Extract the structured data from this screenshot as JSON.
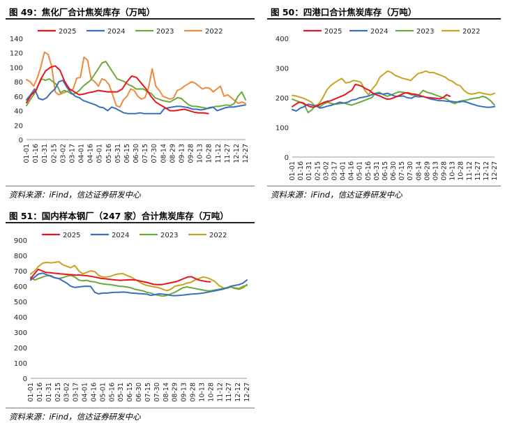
{
  "colors": {
    "c2025": "#e8141c",
    "c2024": "#3a6ec0",
    "c2023": "#6aaa3c",
    "c2022_a": "#ee8a3c",
    "c2022_b": "#c9a21f"
  },
  "panels": {
    "p49": {
      "title": "图 49：焦化厂合计焦炭库存（万吨）",
      "source": "资料来源：iFind，信达证券研发中心"
    },
    "p50": {
      "title": "图 50：四港口合计焦炭库存（万吨）",
      "source": "资料来源：iFind，信达证券研发中心"
    },
    "p51": {
      "title": "图 51：国内样本钢厂（247 家）合计焦炭库存（万吨）",
      "source": "资料来源：iFind，信达证券研发中心"
    }
  },
  "chart_data": [
    {
      "id": "c49",
      "type": "line",
      "title": "焦化厂合计焦炭库存（万吨）",
      "ylim": [
        0,
        140
      ],
      "yticks": [
        0,
        20,
        40,
        60,
        80,
        100,
        120,
        140
      ],
      "x_ticks": [
        "01-01",
        "01-16",
        "01-31",
        "02-15",
        "03-02",
        "03-17",
        "04-01",
        "04-16",
        "05-01",
        "05-16",
        "05-31",
        "06-15",
        "06-30",
        "07-15",
        "07-30",
        "08-14",
        "08-29",
        "09-13",
        "09-28",
        "10-13",
        "10-28",
        "11-12",
        "11-27",
        "12-12",
        "12-27"
      ],
      "legend": [
        "2025",
        "2024",
        "2023",
        "2022"
      ],
      "series": [
        {
          "name": "2025",
          "color": "#e8141c",
          "values": [
            51,
            62,
            68,
            84,
            95,
            100,
            102,
            96,
            80,
            70,
            66,
            62,
            63,
            65,
            66,
            68,
            67,
            66,
            66,
            66,
            70,
            80,
            88,
            86,
            78,
            70,
            60,
            52,
            48,
            44,
            40,
            40,
            41,
            42,
            40,
            38,
            37,
            37,
            36
          ]
        },
        {
          "name": "2024",
          "color": "#3a6ec0",
          "values": [
            55,
            62,
            70,
            57,
            55,
            58,
            65,
            70,
            80,
            82,
            72,
            65,
            60,
            58,
            54,
            52,
            50,
            48,
            45,
            44,
            40,
            45,
            43,
            40,
            37,
            36,
            36,
            36,
            37,
            36,
            36,
            36,
            36,
            36,
            43,
            44,
            45,
            46,
            46,
            45,
            44,
            42,
            42,
            41,
            42,
            44,
            45,
            40,
            42,
            44,
            45,
            45,
            46,
            47,
            48
          ]
        },
        {
          "name": "2023",
          "color": "#6aaa3c",
          "values": [
            47,
            55,
            63,
            74,
            84,
            82,
            84,
            80,
            76,
            65,
            68,
            66,
            63,
            64,
            68,
            74,
            78,
            82,
            90,
            98,
            106,
            108,
            100,
            92,
            84,
            82,
            80,
            76,
            74,
            70,
            70,
            70,
            66,
            64,
            58,
            56,
            54,
            53,
            52,
            55,
            58,
            57,
            52,
            48,
            46,
            46,
            45,
            44,
            43,
            44,
            46,
            46,
            47,
            48,
            47,
            50,
            60,
            66,
            55
          ]
        },
        {
          "name": "2022",
          "color": "#ee8a3c",
          "values": [
            83,
            80,
            74,
            85,
            101,
            121,
            118,
            102,
            66,
            62,
            64,
            66,
            68,
            70,
            85,
            86,
            114,
            110,
            84,
            80,
            74,
            84,
            82,
            76,
            62,
            47,
            45,
            55,
            60,
            70,
            68,
            60,
            56,
            58,
            72,
            98,
            74,
            68,
            60,
            58,
            56,
            58,
            68,
            70,
            74,
            77,
            80,
            78,
            74,
            70,
            72,
            71,
            66,
            70,
            74,
            60,
            62,
            58,
            54,
            50,
            52,
            50
          ]
        }
      ]
    },
    {
      "id": "c50",
      "type": "line",
      "title": "四港口合计焦炭库存（万吨）",
      "ylim": [
        0,
        400
      ],
      "yticks": [
        0,
        100,
        200,
        300,
        400
      ],
      "x_ticks": [
        "01-01",
        "01-16",
        "01-31",
        "02-15",
        "03-02",
        "03-17",
        "04-01",
        "04-16",
        "05-01",
        "05-16",
        "05-31",
        "06-15",
        "06-30",
        "07-15",
        "07-30",
        "08-14",
        "08-29",
        "09-13",
        "09-28",
        "10-13",
        "10-28",
        "11-12",
        "11-27",
        "12-12",
        "12-27"
      ],
      "legend": [
        "2025",
        "2024",
        "2023",
        "2022"
      ],
      "series": [
        {
          "name": "2025",
          "color": "#e8141c",
          "values": [
            170,
            178,
            185,
            183,
            176,
            170,
            168,
            172,
            178,
            184,
            188,
            190,
            195,
            200,
            205,
            210,
            218,
            225,
            245,
            242,
            238,
            230,
            225,
            215,
            210,
            206,
            200,
            195,
            196,
            200,
            205,
            210,
            216,
            217,
            213,
            212,
            209,
            205,
            202,
            200,
            199,
            198,
            196,
            200,
            210,
            205
          ]
        },
        {
          "name": "2024",
          "color": "#3a6ec0",
          "values": [
            160,
            155,
            165,
            170,
            178,
            175,
            172,
            165,
            168,
            172,
            175,
            180,
            185,
            182,
            185,
            192,
            194,
            200,
            202,
            205,
            210,
            215,
            214,
            212,
            215,
            210,
            205,
            205,
            206,
            200,
            198,
            205,
            203,
            204,
            200,
            195,
            193,
            190,
            190,
            188,
            188,
            186,
            185,
            188,
            185,
            180,
            176,
            172,
            170,
            168,
            168,
            170
          ]
        },
        {
          "name": "2023",
          "color": "#6aaa3c",
          "values": [
            195,
            190,
            185,
            178,
            150,
            160,
            175,
            170,
            180,
            185,
            180,
            178,
            180,
            182,
            178,
            175,
            180,
            185,
            190,
            195,
            200,
            215,
            218,
            210,
            205,
            210,
            215,
            220,
            218,
            215,
            210,
            208,
            210,
            225,
            218,
            215,
            210,
            205,
            200,
            195,
            185,
            180,
            188,
            190,
            192,
            196,
            198,
            200,
            205,
            200,
            190,
            175
          ]
        },
        {
          "name": "2022",
          "color": "#c9a21f",
          "values": [
            208,
            206,
            202,
            198,
            192,
            185,
            172,
            180,
            200,
            225,
            240,
            250,
            258,
            265,
            250,
            252,
            258,
            256,
            252,
            225,
            210,
            230,
            245,
            270,
            280,
            290,
            285,
            275,
            270,
            265,
            262,
            258,
            270,
            282,
            285,
            290,
            285,
            285,
            280,
            275,
            270,
            260,
            255,
            245,
            240,
            225,
            215,
            212,
            214,
            218,
            214,
            212,
            210,
            215
          ]
        }
      ]
    },
    {
      "id": "c51",
      "type": "line",
      "title": "国内样本钢厂（247 家）合计焦炭库存（万吨）",
      "ylim": [
        0,
        900
      ],
      "yticks": [
        0,
        100,
        200,
        300,
        400,
        500,
        600,
        700,
        800,
        900
      ],
      "x_ticks": [
        "01-01",
        "01-16",
        "01-31",
        "02-15",
        "03-02",
        "03-17",
        "04-01",
        "04-16",
        "05-01",
        "05-16",
        "05-31",
        "06-15",
        "06-30",
        "07-15",
        "07-30",
        "08-14",
        "08-29",
        "09-13",
        "09-28",
        "10-13",
        "10-28",
        "11-12",
        "11-27",
        "12-12",
        "12-27"
      ],
      "legend": [
        "2025",
        "2024",
        "2023",
        "2022"
      ],
      "series": [
        {
          "name": "2025",
          "color": "#e8141c",
          "values": [
            650,
            680,
            710,
            700,
            690,
            688,
            685,
            683,
            680,
            678,
            676,
            675,
            672,
            673,
            670,
            668,
            665,
            660,
            655,
            650,
            648,
            645,
            642,
            640,
            638,
            640,
            641,
            642,
            640,
            635,
            630,
            625,
            618,
            612,
            610,
            610,
            615,
            620,
            625,
            630,
            640,
            650,
            660,
            662,
            650,
            640,
            635,
            630,
            628
          ]
        },
        {
          "name": "2024",
          "color": "#3a6ec0",
          "values": [
            640,
            660,
            680,
            685,
            675,
            665,
            655,
            650,
            635,
            620,
            600,
            592,
            595,
            598,
            600,
            598,
            560,
            550,
            555,
            555,
            558,
            560,
            560,
            562,
            560,
            556,
            554,
            552,
            550,
            548,
            540,
            545,
            550,
            548,
            545,
            540,
            538,
            540,
            542,
            545,
            548,
            550,
            552,
            555,
            560,
            565,
            570,
            575,
            580,
            590,
            600,
            605,
            610,
            620,
            640
          ]
        },
        {
          "name": "2023",
          "color": "#6aaa3c",
          "values": [
            660,
            640,
            650,
            660,
            668,
            670,
            655,
            650,
            655,
            665,
            670,
            660,
            640,
            635,
            638,
            630,
            628,
            620,
            615,
            612,
            610,
            605,
            600,
            598,
            595,
            590,
            580,
            575,
            570,
            560,
            555,
            545,
            540,
            535,
            540,
            550,
            560,
            575,
            590,
            595,
            590,
            585,
            580,
            575,
            570,
            570,
            575,
            580,
            585,
            590,
            595,
            585,
            580,
            590,
            610
          ]
        },
        {
          "name": "2022",
          "color": "#c9a21f",
          "values": [
            680,
            700,
            730,
            750,
            755,
            752,
            755,
            760,
            740,
            730,
            720,
            735,
            700,
            680,
            690,
            700,
            695,
            670,
            660,
            660,
            665,
            675,
            680,
            682,
            670,
            660,
            645,
            630,
            615,
            605,
            600,
            595,
            590,
            580,
            570,
            580,
            600,
            605,
            610,
            620,
            625,
            640,
            650,
            660,
            655,
            645,
            630,
            605,
            590,
            585,
            595,
            590,
            585,
            600,
            605
          ]
        }
      ]
    }
  ]
}
